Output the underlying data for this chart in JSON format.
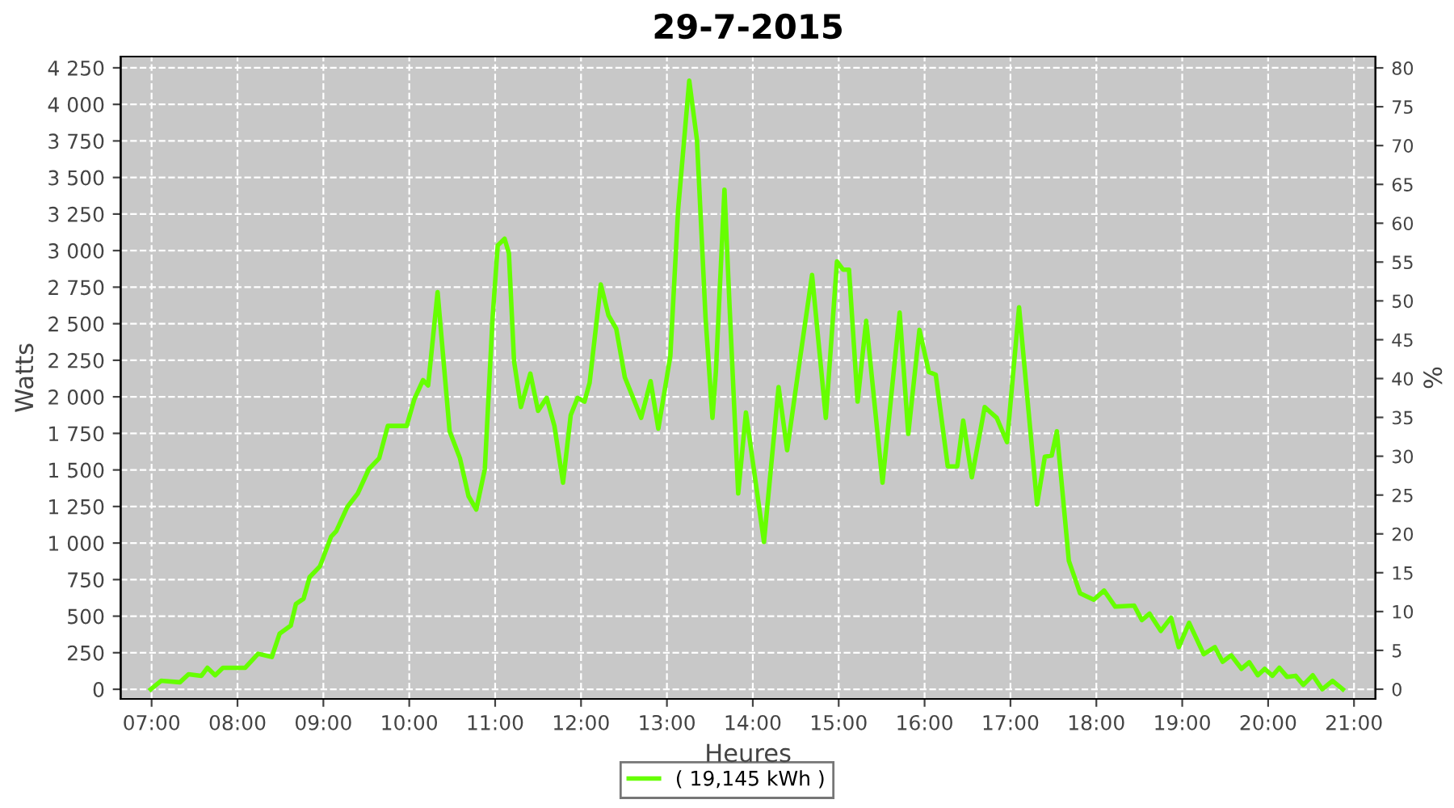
{
  "chart_data": {
    "type": "line",
    "title": "29-7-2015",
    "xlabel": "Heures",
    "ylabel": "Watts",
    "y2label": "%",
    "xlim": [
      6.64,
      21.25
    ],
    "xticks": [
      {
        "value": 7,
        "label": "07:00"
      },
      {
        "value": 8,
        "label": "08:00"
      },
      {
        "value": 9,
        "label": "09:00"
      },
      {
        "value": 10,
        "label": "10:00"
      },
      {
        "value": 11,
        "label": "11:00"
      },
      {
        "value": 12,
        "label": "12:00"
      },
      {
        "value": 13,
        "label": "13:00"
      },
      {
        "value": 14,
        "label": "14:00"
      },
      {
        "value": 15,
        "label": "15:00"
      },
      {
        "value": 16,
        "label": "16:00"
      },
      {
        "value": 17,
        "label": "17:00"
      },
      {
        "value": 18,
        "label": "18:00"
      },
      {
        "value": 19,
        "label": "19:00"
      },
      {
        "value": 20,
        "label": "20:00"
      },
      {
        "value": 21,
        "label": "21:00"
      }
    ],
    "ylim": [
      -66,
      4327
    ],
    "yticks": [
      0,
      250,
      500,
      750,
      {
        "value": 1000,
        "label": "1 000"
      },
      {
        "value": 1250,
        "label": "1 250"
      },
      {
        "value": 1500,
        "label": "1 500"
      },
      {
        "value": 1750,
        "label": "1 750"
      },
      {
        "value": 2000,
        "label": "2 000"
      },
      {
        "value": 2250,
        "label": "2 250"
      },
      {
        "value": 2500,
        "label": "2 500"
      },
      {
        "value": 2750,
        "label": "2 750"
      },
      {
        "value": 3000,
        "label": "3 000"
      },
      {
        "value": 3250,
        "label": "3 250"
      },
      {
        "value": 3500,
        "label": "3 500"
      },
      {
        "value": 3750,
        "label": "3 750"
      },
      {
        "value": 4000,
        "label": "4 000"
      },
      {
        "value": 4250,
        "label": "4 250"
      }
    ],
    "y2lim": [
      -1.25,
      81.46
    ],
    "y2ticks": [
      0,
      5,
      10,
      15,
      20,
      25,
      30,
      35,
      40,
      45,
      50,
      55,
      60,
      65,
      70,
      75,
      80
    ],
    "grid": true,
    "legend": "bottom",
    "marker": "none",
    "line_style": "solid",
    "series": [
      {
        "name": "( 19,145 kWh )",
        "color": "#66ff00",
        "x": [
          6.99,
          7.11,
          7.33,
          7.43,
          7.58,
          7.65,
          7.74,
          7.83,
          8.09,
          8.24,
          8.4,
          8.49,
          8.62,
          8.68,
          8.77,
          8.84,
          8.96,
          9.09,
          9.15,
          9.28,
          9.4,
          9.53,
          9.65,
          9.75,
          9.97,
          10.06,
          10.16,
          10.22,
          10.33,
          10.47,
          10.59,
          10.69,
          10.78,
          10.88,
          10.97,
          11.03,
          11.11,
          11.16,
          11.22,
          11.3,
          11.41,
          11.5,
          11.6,
          11.69,
          11.79,
          11.88,
          11.96,
          12.04,
          12.1,
          12.23,
          12.32,
          12.41,
          12.51,
          12.7,
          12.81,
          12.9,
          13.04,
          13.13,
          13.26,
          13.35,
          13.45,
          13.53,
          13.57,
          13.67,
          13.73,
          13.83,
          13.92,
          14.13,
          14.3,
          14.4,
          14.55,
          14.69,
          14.85,
          14.98,
          15.05,
          15.12,
          15.22,
          15.32,
          15.51,
          15.71,
          15.81,
          15.94,
          16.05,
          16.13,
          16.27,
          16.38,
          16.45,
          16.55,
          16.7,
          16.84,
          16.96,
          17.1,
          17.31,
          17.4,
          17.48,
          17.54,
          17.68,
          17.81,
          17.97,
          18.09,
          18.22,
          18.44,
          18.53,
          18.62,
          18.75,
          18.87,
          18.96,
          19.08,
          19.25,
          19.38,
          19.47,
          19.57,
          19.69,
          19.78,
          19.88,
          19.96,
          20.05,
          20.13,
          20.22,
          20.32,
          20.41,
          20.52,
          20.63,
          20.75,
          20.87
        ],
        "values": [
          0,
          58,
          48,
          103,
          92,
          147,
          96,
          147,
          147,
          243,
          221,
          380,
          435,
          583,
          620,
          767,
          841,
          1044,
          1081,
          1248,
          1339,
          1506,
          1580,
          1801,
          1801,
          1985,
          2114,
          2078,
          2716,
          1764,
          1580,
          1321,
          1229,
          1506,
          2538,
          3036,
          3081,
          2981,
          2244,
          1930,
          2159,
          1904,
          1993,
          1801,
          1413,
          1875,
          1993,
          1967,
          2096,
          2768,
          2557,
          2465,
          2133,
          1856,
          2107,
          1782,
          2280,
          3277,
          4162,
          3756,
          2538,
          1856,
          2170,
          3417,
          2612,
          1339,
          1893,
          1007,
          2067,
          1635,
          2262,
          2834,
          1856,
          2926,
          2870,
          2870,
          1967,
          2520,
          1413,
          2576,
          1746,
          2458,
          2170,
          2151,
          1524,
          1524,
          1838,
          1450,
          1930,
          1856,
          1690,
          2612,
          1265,
          1590,
          1598,
          1764,
          878,
          657,
          612,
          675,
          565,
          572,
          473,
          517,
          399,
          490,
          288,
          454,
          240,
          288,
          188,
          232,
          140,
          185,
          96,
          140,
          92,
          147,
          85,
          92,
          30,
          96,
          0,
          58,
          0
        ]
      }
    ]
  }
}
